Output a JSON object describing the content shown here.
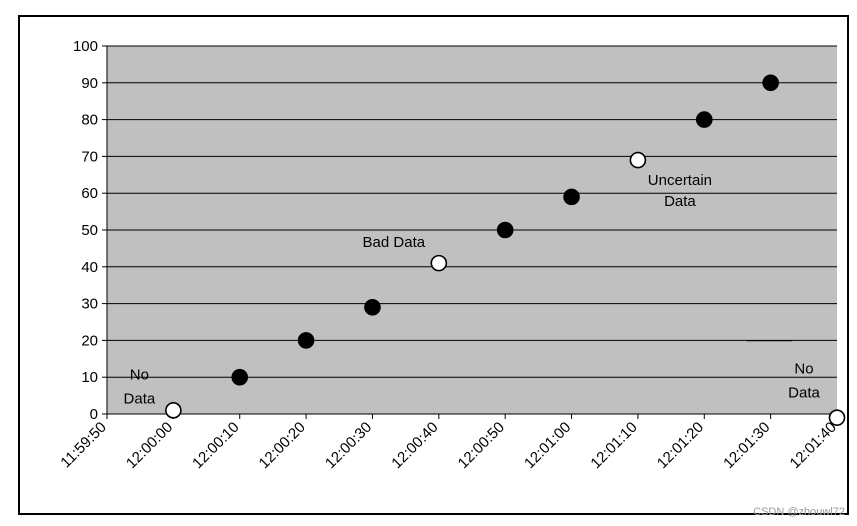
{
  "chart_data": {
    "type": "scatter",
    "title": "",
    "xlabel": "",
    "ylabel": "",
    "x_ticks": [
      "11:59:50",
      "12:00:00",
      "12:00:10",
      "12:00:20",
      "12:00:30",
      "12:00:40",
      "12:00:50",
      "12:01:00",
      "12:01:10",
      "12:01:20",
      "12:01:30",
      "12:01:40"
    ],
    "y_ticks": [
      "0",
      "10",
      "20",
      "30",
      "40",
      "50",
      "60",
      "70",
      "80",
      "90",
      "100"
    ],
    "xlim": [
      "11:59:50",
      "12:01:40"
    ],
    "ylim": [
      0,
      100
    ],
    "grid": "horizontal",
    "plot_background": "#c0c0c0",
    "points": [
      {
        "x": "12:00:00",
        "y": 1,
        "quality": "no-data",
        "fill": "#ffffff"
      },
      {
        "x": "12:00:10",
        "y": 10,
        "quality": "good",
        "fill": "#000000"
      },
      {
        "x": "12:00:20",
        "y": 20,
        "quality": "good",
        "fill": "#000000"
      },
      {
        "x": "12:00:30",
        "y": 29,
        "quality": "good",
        "fill": "#000000"
      },
      {
        "x": "12:00:40",
        "y": 41,
        "quality": "bad",
        "fill": "#ffffff"
      },
      {
        "x": "12:00:50",
        "y": 50,
        "quality": "good",
        "fill": "#000000"
      },
      {
        "x": "12:01:00",
        "y": 59,
        "quality": "good",
        "fill": "#000000"
      },
      {
        "x": "12:01:10",
        "y": 69,
        "quality": "uncertain",
        "fill": "#ffffff"
      },
      {
        "x": "12:01:20",
        "y": 80,
        "quality": "good",
        "fill": "#000000"
      },
      {
        "x": "12:01:30",
        "y": 90,
        "quality": "good",
        "fill": "#000000"
      },
      {
        "x": "12:01:40",
        "y": -1,
        "quality": "no-data",
        "fill": "#ffffff"
      }
    ],
    "annotations": [
      {
        "lines": [
          "No",
          "Data"
        ],
        "x": "12:00:00",
        "y": 1
      },
      {
        "lines": [
          "Bad Data"
        ],
        "x": "12:00:40",
        "y": 41
      },
      {
        "lines": [
          "Uncertain",
          "Data"
        ],
        "x": "12:01:10",
        "y": 69
      },
      {
        "lines": [
          "No",
          "Data"
        ],
        "x": "12:01:40",
        "y": -1
      }
    ]
  },
  "watermark": "CSDN @zhouwl72"
}
